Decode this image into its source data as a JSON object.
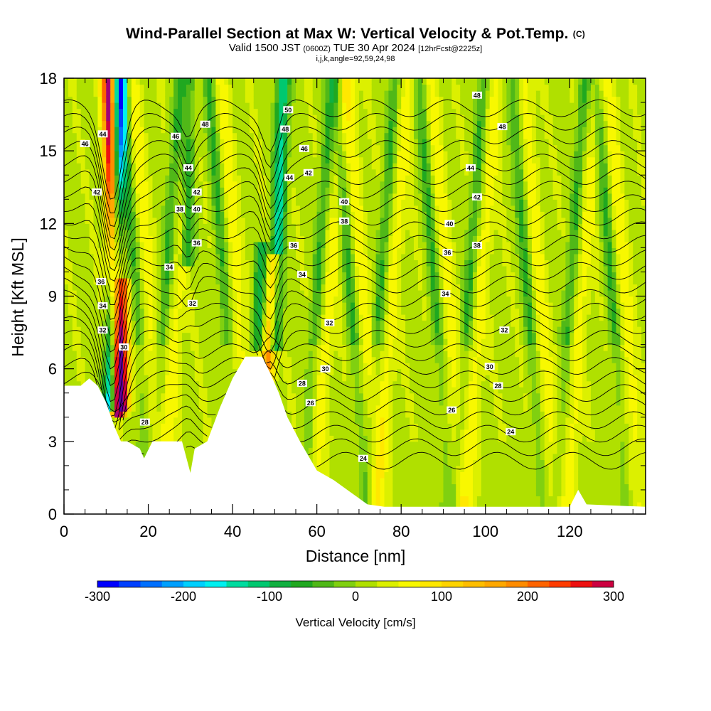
{
  "header": {
    "title": "Wind-Parallel Section at Max W: Vertical Velocity & Pot.Temp.",
    "copyright": "(C)",
    "valid_prefix": "Valid 1500 JST",
    "valid_utc": "(0600Z)",
    "valid_date": "TUE 30 Apr 2024",
    "forecast": "[12hrFcst@2225z]",
    "indices": "i,j,k,angle=92,59,24,98"
  },
  "colors": {
    "colorbar": [
      "#0000ff",
      "#0040ff",
      "#0070ff",
      "#00a0ff",
      "#00d0ff",
      "#00f0f0",
      "#00dca0",
      "#00c870",
      "#10b040",
      "#20a820",
      "#50b818",
      "#80d010",
      "#b0e000",
      "#dcf000",
      "#f8f800",
      "#ffe800",
      "#ffd400",
      "#ffbe00",
      "#ffa800",
      "#ff8c00",
      "#ff6400",
      "#ff3c00",
      "#ee1010",
      "#cc0040",
      "#a00078",
      "#800090",
      "#60009c"
    ]
  },
  "chart_data": {
    "type": "heatmap",
    "title": "Wind-Parallel Section at Max W: Vertical Velocity & Pot.Temp.",
    "xlabel": "Distance [nm]",
    "ylabel": "Height [Kft MSL]",
    "xlim": [
      0,
      138
    ],
    "ylim": [
      0,
      18
    ],
    "x_ticks": [
      0,
      20,
      40,
      60,
      80,
      100,
      120
    ],
    "y_ticks": [
      0,
      3,
      6,
      9,
      12,
      15,
      18
    ],
    "colorbar": {
      "title": "Vertical Velocity [cm/s]",
      "range": [
        -300,
        300
      ],
      "ticks": [
        -300,
        -200,
        -100,
        0,
        100,
        200,
        300
      ],
      "step": 25
    },
    "terrain": [
      [
        0,
        5.3
      ],
      [
        4,
        5.3
      ],
      [
        6,
        5.6
      ],
      [
        8,
        5.3
      ],
      [
        10,
        4.6
      ],
      [
        12,
        3.6
      ],
      [
        13.5,
        3.0
      ],
      [
        15,
        3.0
      ],
      [
        18,
        2.7
      ],
      [
        19,
        2.3
      ],
      [
        21,
        3.0
      ],
      [
        28,
        3.0
      ],
      [
        30,
        1.7
      ],
      [
        31,
        2.7
      ],
      [
        34,
        3.0
      ],
      [
        37,
        4.4
      ],
      [
        40,
        5.6
      ],
      [
        43,
        6.5
      ],
      [
        47,
        6.5
      ],
      [
        49,
        5.8
      ],
      [
        51,
        5.0
      ],
      [
        53,
        4.0
      ],
      [
        56,
        3.0
      ],
      [
        60,
        1.8
      ],
      [
        64,
        1.4
      ],
      [
        68,
        0.9
      ],
      [
        72,
        0.4
      ],
      [
        76,
        0.3
      ],
      [
        120,
        0.3
      ],
      [
        122,
        1.0
      ],
      [
        124,
        0.4
      ],
      [
        138,
        0.3
      ]
    ],
    "updrafts": [
      {
        "x0": 10.5,
        "x1": 13,
        "y0": 18,
        "y1": 4.3,
        "max": 300
      },
      {
        "x0": 50,
        "x1": 48,
        "y0": 10.5,
        "y1": 5.5,
        "max": 170
      },
      {
        "x0": 14,
        "x1": 14,
        "y0": 9.5,
        "y1": 4.5,
        "max": 190
      }
    ],
    "downdrafts": [
      {
        "x0": 13.5,
        "x1": 11,
        "y0": 18,
        "y1": 4.5,
        "min": -240
      },
      {
        "x0": 30,
        "x1": 29,
        "y0": 18,
        "y1": 10.5,
        "min": -110
      },
      {
        "x0": 52,
        "x1": 50,
        "y0": 18,
        "y1": 7,
        "min": -150
      },
      {
        "x0": 47,
        "x1": 46,
        "y0": 11,
        "y1": 7,
        "min": -110
      }
    ],
    "theta_labels": [
      {
        "value": "46",
        "x": 5,
        "y": 15.3
      },
      {
        "value": "44",
        "x": 9.2,
        "y": 15.7
      },
      {
        "value": "42",
        "x": 7.8,
        "y": 13.3
      },
      {
        "value": "36",
        "x": 8.8,
        "y": 9.6
      },
      {
        "value": "34",
        "x": 9.2,
        "y": 8.6
      },
      {
        "value": "32",
        "x": 9.2,
        "y": 7.6
      },
      {
        "value": "30",
        "x": 14.2,
        "y": 6.9
      },
      {
        "value": "28",
        "x": 19.2,
        "y": 3.8
      },
      {
        "value": "46",
        "x": 26.5,
        "y": 15.6
      },
      {
        "value": "48",
        "x": 33.5,
        "y": 16.1
      },
      {
        "value": "44",
        "x": 29.5,
        "y": 14.3
      },
      {
        "value": "42",
        "x": 31.5,
        "y": 13.3
      },
      {
        "value": "38",
        "x": 27.5,
        "y": 12.6
      },
      {
        "value": "40",
        "x": 31.5,
        "y": 12.6
      },
      {
        "value": "36",
        "x": 31.5,
        "y": 11.2
      },
      {
        "value": "34",
        "x": 25,
        "y": 10.2
      },
      {
        "value": "32",
        "x": 30.5,
        "y": 8.7
      },
      {
        "value": "50",
        "x": 53.2,
        "y": 16.7
      },
      {
        "value": "48",
        "x": 52.5,
        "y": 15.9
      },
      {
        "value": "46",
        "x": 57,
        "y": 15.1
      },
      {
        "value": "44",
        "x": 53.5,
        "y": 13.9
      },
      {
        "value": "42",
        "x": 58,
        "y": 14.1
      },
      {
        "value": "40",
        "x": 66.5,
        "y": 12.9
      },
      {
        "value": "38",
        "x": 66.5,
        "y": 12.1
      },
      {
        "value": "36",
        "x": 54.5,
        "y": 11.1
      },
      {
        "value": "34",
        "x": 56.5,
        "y": 9.9
      },
      {
        "value": "32",
        "x": 63,
        "y": 7.9
      },
      {
        "value": "30",
        "x": 62,
        "y": 6.0
      },
      {
        "value": "28",
        "x": 56.5,
        "y": 5.4
      },
      {
        "value": "26",
        "x": 58.5,
        "y": 4.6
      },
      {
        "value": "24",
        "x": 71,
        "y": 2.3
      },
      {
        "value": "48",
        "x": 98,
        "y": 17.3
      },
      {
        "value": "48",
        "x": 104,
        "y": 16.0
      },
      {
        "value": "44",
        "x": 96.5,
        "y": 14.3
      },
      {
        "value": "42",
        "x": 98,
        "y": 13.1
      },
      {
        "value": "40",
        "x": 91.5,
        "y": 12.0
      },
      {
        "value": "38",
        "x": 98,
        "y": 11.1
      },
      {
        "value": "36",
        "x": 91,
        "y": 10.8
      },
      {
        "value": "34",
        "x": 90.5,
        "y": 9.1
      },
      {
        "value": "32",
        "x": 104.5,
        "y": 7.6
      },
      {
        "value": "30",
        "x": 101,
        "y": 6.1
      },
      {
        "value": "28",
        "x": 103,
        "y": 5.3
      },
      {
        "value": "26",
        "x": 92,
        "y": 4.3
      },
      {
        "value": "24",
        "x": 106,
        "y": 3.4
      }
    ]
  }
}
